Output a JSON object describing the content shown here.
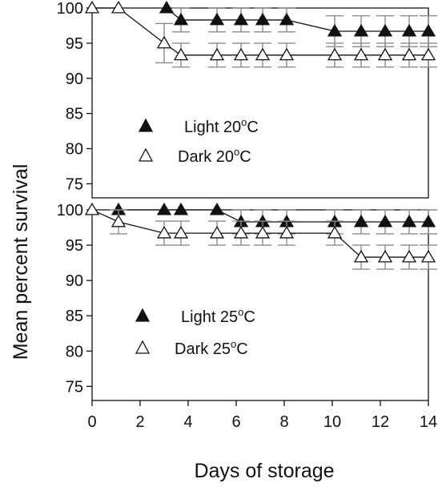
{
  "chart_data": [
    {
      "type": "line",
      "panel": "top",
      "xlim": [
        0,
        14
      ],
      "ylim": [
        73,
        100
      ],
      "yticks": [
        75,
        80,
        85,
        90,
        95,
        100
      ],
      "series": [
        {
          "name": "Light 20",
          "unit": "oC",
          "marker": "filled-triangle",
          "x": [
            3.1,
            3.7,
            5.2,
            6.2,
            7.1,
            8.1,
            10.1,
            11.2,
            12.2,
            13.2,
            14.0
          ],
          "y": [
            100,
            98.3,
            98.3,
            98.3,
            98.3,
            98.3,
            96.7,
            96.7,
            96.7,
            96.7,
            96.7
          ],
          "err": [
            0,
            1.7,
            1.7,
            1.7,
            1.7,
            1.7,
            2.2,
            2.2,
            2.2,
            2.2,
            2.2
          ]
        },
        {
          "name": "Dark 20",
          "unit": "oC",
          "marker": "open-triangle",
          "x": [
            0,
            1.1,
            3.0,
            3.7,
            5.2,
            6.2,
            7.1,
            8.1,
            10.1,
            11.2,
            12.2,
            13.2,
            14.0
          ],
          "y": [
            100,
            100,
            95.0,
            93.3,
            93.3,
            93.3,
            93.3,
            93.3,
            93.3,
            93.3,
            93.3,
            93.3,
            93.3
          ],
          "err": [
            0,
            0,
            2.8,
            1.7,
            1.7,
            1.7,
            1.7,
            1.7,
            1.7,
            1.7,
            1.7,
            1.7,
            1.7
          ]
        }
      ]
    },
    {
      "type": "line",
      "panel": "bottom",
      "xlim": [
        0,
        14
      ],
      "ylim": [
        73,
        100
      ],
      "yticks": [
        75,
        80,
        85,
        90,
        95,
        100
      ],
      "xticks": [
        0,
        2,
        4,
        6,
        8,
        10,
        12,
        14
      ],
      "series": [
        {
          "name": "Light 25",
          "unit": "oC",
          "marker": "filled-triangle",
          "x": [
            1.1,
            3.0,
            3.7,
            5.2,
            6.2,
            7.1,
            8.1,
            10.1,
            11.2,
            12.2,
            13.2,
            14.0
          ],
          "y": [
            100,
            100,
            100,
            100,
            98.3,
            98.3,
            98.3,
            98.3,
            98.3,
            98.3,
            98.3,
            98.3
          ],
          "err": [
            0,
            0,
            0,
            0,
            1.7,
            1.7,
            1.7,
            1.7,
            1.7,
            1.7,
            1.7,
            1.7
          ]
        },
        {
          "name": "Dark 25",
          "unit": "oC",
          "marker": "open-triangle",
          "x": [
            0,
            1.1,
            3.0,
            3.7,
            5.2,
            6.2,
            7.1,
            8.1,
            10.1,
            11.2,
            12.2,
            13.2,
            14.0
          ],
          "y": [
            100,
            98.3,
            96.7,
            96.7,
            96.7,
            96.7,
            96.7,
            96.7,
            96.7,
            93.3,
            93.3,
            93.3,
            93.3
          ],
          "err": [
            0,
            1.7,
            1.7,
            1.7,
            1.7,
            1.7,
            1.7,
            1.7,
            1.7,
            1.7,
            1.7,
            1.7,
            1.7
          ]
        }
      ]
    }
  ],
  "xlabel": "Days of storage",
  "ylabel": "Mean percent survival",
  "colors": {
    "line": "#111111",
    "errorbar": "#8c8c8c",
    "marker_fill": "#111111"
  }
}
